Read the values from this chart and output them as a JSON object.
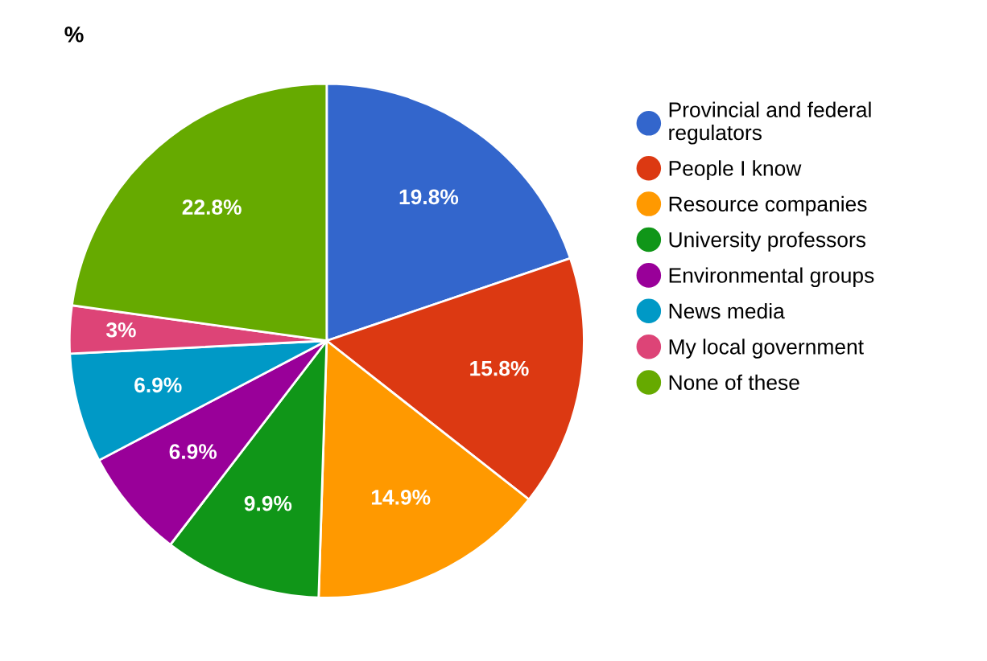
{
  "chart_data": {
    "type": "pie",
    "title": "%",
    "categories": [
      "Provincial and federal\nregulators",
      "People I know",
      "Resource companies",
      "University professors",
      "Environmental groups",
      "News media",
      "My local government",
      "None of these"
    ],
    "values": [
      19.8,
      15.8,
      14.9,
      9.9,
      6.9,
      6.9,
      3,
      22.8
    ],
    "value_labels": [
      "19.8%",
      "15.8%",
      "14.9%",
      "9.9%",
      "6.9%",
      "6.9%",
      "3%",
      "22.8%"
    ],
    "colors": [
      "#3366cc",
      "#dc3912",
      "#ff9900",
      "#109618",
      "#990099",
      "#0099c6",
      "#dd4477",
      "#66aa00"
    ],
    "legend": "right"
  }
}
